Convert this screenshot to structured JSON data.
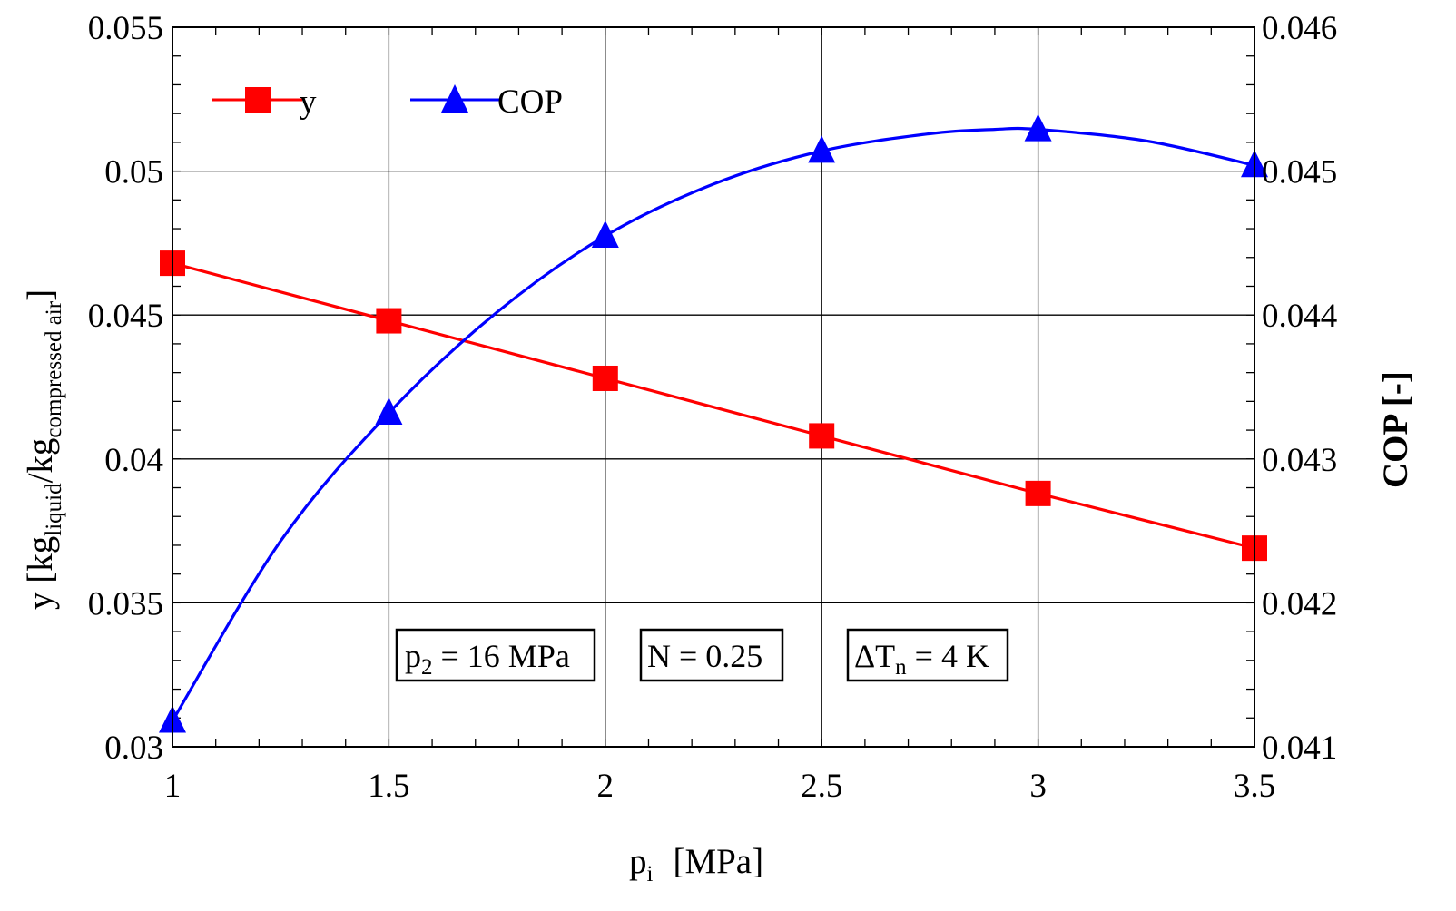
{
  "chart_data": {
    "type": "line",
    "title": "",
    "x": [
      1,
      1.5,
      2,
      2.5,
      3,
      3.5
    ],
    "xlim": [
      1,
      3.5
    ],
    "x_ticks": [
      "1",
      "1.5",
      "2",
      "2.5",
      "3",
      "3.5"
    ],
    "ylim_left": [
      0.03,
      0.055
    ],
    "y_left_ticks": [
      "0.03",
      "0.035",
      "0.04",
      "0.045",
      "0.05",
      "0.055"
    ],
    "ylim_right": [
      0.041,
      0.046
    ],
    "y_right_ticks": [
      "0.041",
      "0.042",
      "0.043",
      "0.044",
      "0.045",
      "0.046"
    ],
    "xlabel": {
      "main": "p",
      "sub": "i",
      "unit": "[MPa]"
    },
    "ylabel_left": {
      "pre": "y [kg",
      "sub1": "liquid",
      "mid": "/kg",
      "sub2": "compressed air",
      "post": "]"
    },
    "ylabel_right": "COP [-]",
    "grid": true,
    "legend_position": "top-left",
    "series": [
      {
        "name": "y",
        "axis": "left",
        "marker": "square",
        "color": "#ff0000",
        "values": [
          0.0468,
          0.0448,
          0.0428,
          0.0408,
          0.0388,
          0.0369
        ]
      },
      {
        "name": "COP",
        "axis": "right",
        "marker": "triangle",
        "color": "#0000ff",
        "values": [
          0.04118,
          0.04332,
          0.04455,
          0.04514,
          0.04529,
          0.04504
        ],
        "curve": [
          [
            1,
            0.04118
          ],
          [
            1.25,
            0.04243
          ],
          [
            1.5,
            0.04332
          ],
          [
            1.75,
            0.04402
          ],
          [
            2,
            0.04455
          ],
          [
            2.25,
            0.04491
          ],
          [
            2.5,
            0.04514
          ],
          [
            2.75,
            0.04526
          ],
          [
            2.9,
            0.04529
          ],
          [
            3,
            0.04529
          ],
          [
            3.25,
            0.04521
          ],
          [
            3.5,
            0.04504
          ]
        ]
      }
    ],
    "annotations": [
      {
        "main": "p",
        "sub": "2",
        "rest": " = 16 MPa"
      },
      {
        "main": "N = 0.25",
        "sub": "",
        "rest": ""
      },
      {
        "main": "ΔT",
        "sub": "n",
        "rest": " = 4 K"
      }
    ]
  }
}
